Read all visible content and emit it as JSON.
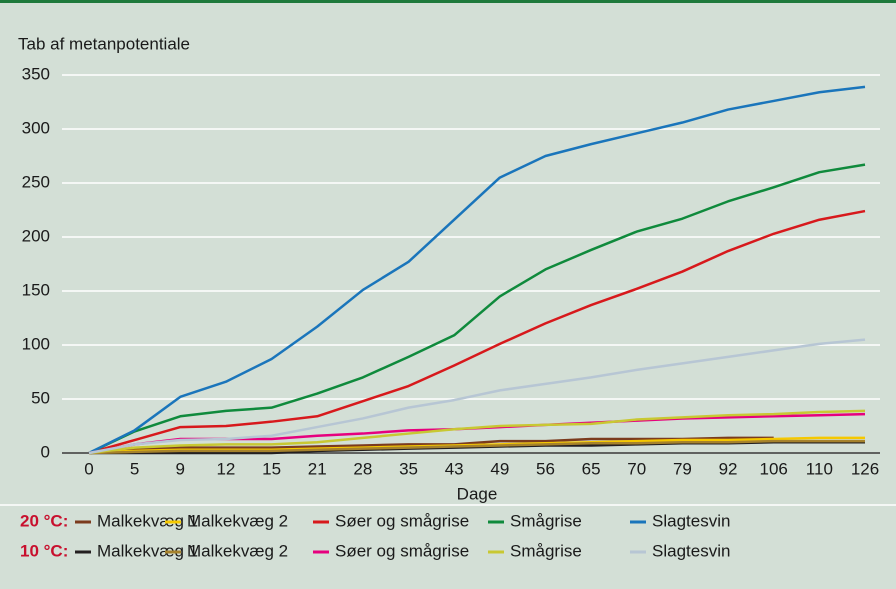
{
  "chart_data": {
    "type": "line",
    "y_label": "Tab af metanpotentiale",
    "x_label": "Dage",
    "categories": [
      "0",
      "5",
      "9",
      "12",
      "15",
      "21",
      "28",
      "35",
      "43",
      "49",
      "56",
      "65",
      "70",
      "79",
      "92",
      "106",
      "110",
      "126"
    ],
    "ylim": [
      0,
      350
    ],
    "yticks": [
      0,
      50,
      100,
      150,
      200,
      250,
      300,
      350
    ],
    "grid": true,
    "series_groups": [
      {
        "label": "20 °C:",
        "series": [
          {
            "name": "Malkekvæg 1",
            "color": "#7b3b1e",
            "values": [
              0,
              3,
              5,
              5,
              5,
              6,
              7,
              8,
              8,
              11,
              11,
              13,
              13,
              13,
              14,
              14,
              null,
              null
            ]
          },
          {
            "name": "Malkekvæg 2",
            "color": "#f5c800",
            "values": [
              0,
              2,
              3,
              3,
              3,
              4,
              5,
              6,
              7,
              8,
              9,
              10,
              11,
              12,
              12,
              13,
              14,
              14
            ]
          },
          {
            "name": "Søer og smågrise",
            "color": "#d7191c",
            "values": [
              0,
              12,
              24,
              25,
              29,
              34,
              48,
              62,
              81,
              101,
              120,
              137,
              152,
              168,
              187,
              203,
              216,
              224
            ]
          },
          {
            "name": "Smågrise",
            "color": "#0f8a3c",
            "values": [
              0,
              20,
              34,
              39,
              42,
              55,
              70,
              89,
              109,
              145,
              170,
              188,
              205,
              217,
              233,
              246,
              260,
              267
            ]
          },
          {
            "name": "Slagtesvin",
            "color": "#1a75bb",
            "values": [
              0,
              21,
              52,
              66,
              87,
              117,
              151,
              177,
              216,
              255,
              275,
              286,
              296,
              306,
              318,
              326,
              334,
              339
            ]
          }
        ]
      },
      {
        "label": "10 °C:",
        "series": [
          {
            "name": "Malkekvæg 1",
            "color": "#231f20",
            "values": [
              0,
              0,
              0,
              0,
              0,
              2,
              3,
              4,
              5,
              6,
              7,
              7,
              8,
              9,
              9,
              10,
              10,
              10
            ]
          },
          {
            "name": "Malkekvæg 2",
            "color": "#a6822c",
            "values": [
              0,
              1,
              2,
              2,
              2,
              3,
              4,
              5,
              6,
              7,
              8,
              9,
              9,
              10,
              10,
              11,
              11,
              11
            ]
          },
          {
            "name": "Søer og smågrise",
            "color": "#e6007e",
            "values": [
              0,
              8,
              13,
              13,
              13,
              16,
              18,
              21,
              22,
              24,
              26,
              28,
              30,
              32,
              33,
              34,
              35,
              36
            ]
          },
          {
            "name": "Smågrise",
            "color": "#c8c832",
            "values": [
              0,
              5,
              7,
              8,
              8,
              10,
              14,
              18,
              22,
              25,
              26,
              27,
              31,
              33,
              35,
              36,
              38,
              39
            ]
          },
          {
            "name": "Slagtesvin",
            "color": "#b7c6d4",
            "values": [
              0,
              8,
              12,
              13,
              16,
              24,
              32,
              42,
              49,
              58,
              64,
              70,
              77,
              83,
              89,
              95,
              101,
              105
            ]
          }
        ]
      }
    ]
  }
}
